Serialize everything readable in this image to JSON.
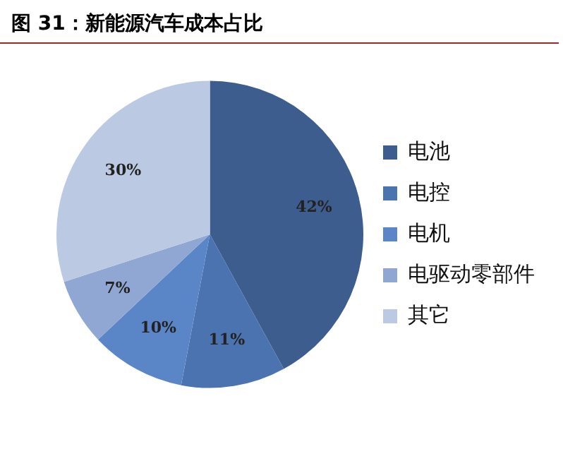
{
  "chart_data": {
    "type": "pie",
    "title": "图 31：新能源汽车成本占比",
    "categories": [
      "电池",
      "电控",
      "电机",
      "电驱动零部件",
      "其它"
    ],
    "values": [
      42,
      11,
      10,
      7,
      30
    ],
    "value_labels": [
      "42%",
      "11%",
      "10%",
      "7%",
      "30%"
    ],
    "colors": [
      "#3c5d8e",
      "#4a73b0",
      "#5a86c7",
      "#8fa7d2",
      "#bcc9e3"
    ],
    "legend": "right"
  }
}
